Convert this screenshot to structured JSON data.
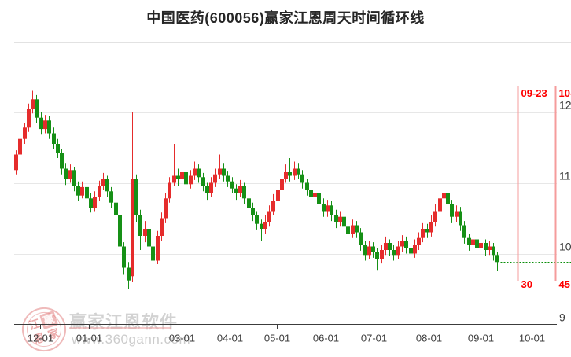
{
  "title": "中国医药(600056)赢家江恩周天时间循环线",
  "watermark": {
    "brand": "赢家江恩软件",
    "url": "www.360gann.com",
    "seal_chars": [
      "江",
      "赢",
      "恩",
      "家"
    ]
  },
  "chart_data": {
    "type": "candlestick",
    "title": "中国医药(600056)赢家江恩周天时间循环线",
    "grid": true,
    "y_axis": {
      "side": "right",
      "values": [
        12,
        11,
        10,
        9
      ],
      "tick_labels": [
        "12",
        "11",
        "10",
        "9"
      ],
      "range": [
        9,
        12.45
      ]
    },
    "x_axis": {
      "ticks": [
        {
          "label": "12-01",
          "index": 5.87
        },
        {
          "label": "01-01",
          "index": 17.61
        },
        {
          "label": "03-01",
          "index": 39.96
        },
        {
          "label": "04-01",
          "index": 51.52
        },
        {
          "label": "05-01",
          "index": 62.88
        },
        {
          "label": "06-01",
          "index": 74.62
        },
        {
          "label": "07-01",
          "index": 86.17
        },
        {
          "label": "08-01",
          "index": 99.43
        },
        {
          "label": "09-01",
          "index": 111.93
        },
        {
          "label": "10-01",
          "index": 124.24
        }
      ]
    },
    "gann_cycle_lines": [
      {
        "date_label": "09-23",
        "count_label": "30",
        "index": 120.83
      },
      {
        "date_label": "10-",
        "count_label": "45",
        "index": 129.92
      }
    ],
    "last_close_line": {
      "price": 9.88,
      "style": "dotted"
    },
    "colors": {
      "up": "#e52c2c",
      "down": "#169016",
      "cycle_line": "#f59c9c",
      "cycle_text": "#fe0000",
      "grid": "#e7e7e7",
      "axis": "#3c3c3c",
      "last_close": "#0b8f0b"
    },
    "candles_ohlc": [
      [
        11.18,
        11.46,
        11.12,
        11.4
      ],
      [
        11.4,
        11.7,
        11.34,
        11.62
      ],
      [
        11.62,
        11.84,
        11.55,
        11.78
      ],
      [
        11.78,
        12.12,
        11.72,
        12.05
      ],
      [
        12.05,
        12.3,
        11.98,
        12.18
      ],
      [
        12.18,
        12.24,
        11.85,
        11.92
      ],
      [
        11.92,
        12.0,
        11.68,
        11.76
      ],
      [
        11.76,
        11.96,
        11.7,
        11.88
      ],
      [
        11.88,
        11.94,
        11.62,
        11.7
      ],
      [
        11.7,
        11.78,
        11.48,
        11.55
      ],
      [
        11.55,
        11.62,
        11.35,
        11.42
      ],
      [
        11.42,
        11.48,
        11.12,
        11.2
      ],
      [
        11.2,
        11.28,
        10.97,
        11.05
      ],
      [
        11.05,
        11.26,
        11.0,
        11.18
      ],
      [
        11.18,
        11.22,
        10.88,
        10.95
      ],
      [
        10.95,
        11.02,
        10.75,
        10.82
      ],
      [
        10.82,
        11.02,
        10.78,
        10.94
      ],
      [
        10.94,
        11.0,
        10.7,
        10.78
      ],
      [
        10.78,
        10.85,
        10.58,
        10.65
      ],
      [
        10.65,
        10.88,
        10.6,
        10.8
      ],
      [
        10.8,
        11.03,
        10.74,
        10.95
      ],
      [
        10.95,
        11.14,
        10.9,
        11.05
      ],
      [
        11.05,
        11.1,
        10.8,
        10.88
      ],
      [
        10.88,
        10.94,
        10.64,
        10.72
      ],
      [
        10.72,
        10.78,
        10.46,
        10.55
      ],
      [
        10.55,
        10.6,
        10.02,
        10.1
      ],
      [
        10.1,
        10.16,
        9.7,
        9.8
      ],
      [
        9.8,
        9.88,
        9.5,
        9.62
      ],
      [
        9.68,
        12.0,
        9.6,
        11.05
      ],
      [
        11.05,
        11.12,
        10.45,
        10.55
      ],
      [
        10.55,
        10.62,
        10.05,
        10.25
      ],
      [
        10.25,
        10.46,
        10.16,
        10.35
      ],
      [
        10.35,
        10.4,
        9.85,
        10.1
      ],
      [
        10.1,
        10.15,
        9.62,
        9.9
      ],
      [
        9.9,
        10.32,
        9.85,
        10.25
      ],
      [
        10.25,
        10.58,
        10.18,
        10.5
      ],
      [
        10.5,
        10.85,
        10.44,
        10.78
      ],
      [
        10.78,
        11.08,
        10.72,
        11.0
      ],
      [
        11.0,
        11.55,
        10.95,
        11.1
      ],
      [
        11.1,
        11.2,
        10.96,
        11.05
      ],
      [
        11.05,
        11.24,
        11.0,
        11.15
      ],
      [
        11.15,
        11.2,
        10.9,
        10.98
      ],
      [
        10.98,
        11.18,
        10.92,
        11.1
      ],
      [
        11.1,
        11.3,
        11.04,
        11.2
      ],
      [
        11.2,
        11.26,
        11.0,
        11.08
      ],
      [
        11.08,
        11.14,
        10.88,
        10.95
      ],
      [
        10.95,
        11.0,
        10.76,
        10.85
      ],
      [
        10.85,
        11.08,
        10.8,
        11.0
      ],
      [
        11.0,
        11.2,
        10.94,
        11.12
      ],
      [
        11.12,
        11.4,
        11.06,
        11.2
      ],
      [
        11.2,
        11.28,
        11.02,
        11.1
      ],
      [
        11.1,
        11.16,
        10.94,
        11.02
      ],
      [
        11.02,
        11.08,
        10.85,
        10.92
      ],
      [
        10.92,
        10.98,
        10.76,
        10.85
      ],
      [
        10.85,
        11.04,
        10.8,
        10.95
      ],
      [
        10.95,
        11.0,
        10.7,
        10.78
      ],
      [
        10.78,
        10.84,
        10.58,
        10.65
      ],
      [
        10.65,
        10.72,
        10.46,
        10.55
      ],
      [
        10.55,
        10.6,
        10.34,
        10.42
      ],
      [
        10.42,
        10.48,
        10.18,
        10.35
      ],
      [
        10.35,
        10.54,
        10.28,
        10.45
      ],
      [
        10.45,
        10.68,
        10.38,
        10.6
      ],
      [
        10.6,
        10.84,
        10.54,
        10.75
      ],
      [
        10.75,
        10.98,
        10.68,
        10.9
      ],
      [
        10.9,
        11.14,
        10.84,
        11.05
      ],
      [
        11.05,
        11.26,
        11.0,
        11.15
      ],
      [
        11.15,
        11.35,
        11.02,
        11.1
      ],
      [
        11.1,
        11.3,
        11.04,
        11.2
      ],
      [
        11.2,
        11.28,
        11.05,
        11.12
      ],
      [
        11.12,
        11.18,
        10.92,
        11.0
      ],
      [
        11.0,
        11.06,
        10.82,
        10.9
      ],
      [
        10.9,
        10.96,
        10.72,
        10.8
      ],
      [
        10.8,
        10.94,
        10.74,
        10.85
      ],
      [
        10.85,
        10.9,
        10.62,
        10.7
      ],
      [
        10.7,
        10.78,
        10.52,
        10.6
      ],
      [
        10.6,
        10.76,
        10.52,
        10.68
      ],
      [
        10.68,
        10.74,
        10.46,
        10.55
      ],
      [
        10.55,
        10.62,
        10.36,
        10.45
      ],
      [
        10.45,
        10.6,
        10.38,
        10.52
      ],
      [
        10.52,
        10.58,
        10.3,
        10.38
      ],
      [
        10.38,
        10.44,
        10.2,
        10.28
      ],
      [
        10.28,
        10.48,
        10.22,
        10.4
      ],
      [
        10.4,
        10.46,
        10.22,
        10.3
      ],
      [
        10.3,
        10.36,
        10.04,
        10.12
      ],
      [
        10.12,
        10.18,
        9.9,
        9.98
      ],
      [
        9.98,
        10.18,
        9.92,
        10.1
      ],
      [
        10.1,
        10.16,
        9.94,
        10.02
      ],
      [
        10.02,
        10.08,
        9.77,
        9.92
      ],
      [
        9.92,
        10.12,
        9.86,
        10.05
      ],
      [
        10.05,
        10.24,
        9.98,
        10.15
      ],
      [
        10.15,
        10.2,
        9.97,
        10.05
      ],
      [
        10.05,
        10.12,
        9.9,
        9.98
      ],
      [
        9.98,
        10.18,
        9.92,
        10.1
      ],
      [
        10.1,
        10.26,
        10.02,
        10.18
      ],
      [
        10.18,
        10.24,
        10.0,
        10.08
      ],
      [
        10.08,
        10.14,
        9.92,
        10.0
      ],
      [
        10.0,
        10.2,
        9.94,
        10.12
      ],
      [
        10.12,
        10.3,
        10.05,
        10.22
      ],
      [
        10.22,
        10.44,
        10.16,
        10.35
      ],
      [
        10.35,
        10.42,
        10.22,
        10.3
      ],
      [
        10.3,
        10.54,
        10.24,
        10.45
      ],
      [
        10.45,
        10.7,
        10.38,
        10.6
      ],
      [
        10.6,
        10.95,
        10.54,
        10.78
      ],
      [
        10.78,
        11.0,
        10.7,
        10.85
      ],
      [
        10.85,
        10.92,
        10.62,
        10.7
      ],
      [
        10.7,
        10.76,
        10.44,
        10.52
      ],
      [
        10.52,
        10.68,
        10.45,
        10.6
      ],
      [
        10.6,
        10.66,
        10.32,
        10.4
      ],
      [
        10.4,
        10.46,
        10.14,
        10.22
      ],
      [
        10.22,
        10.28,
        10.04,
        10.12
      ],
      [
        10.12,
        10.28,
        10.05,
        10.2
      ],
      [
        10.2,
        10.26,
        10.0,
        10.08
      ],
      [
        10.08,
        10.22,
        10.0,
        10.15
      ],
      [
        10.15,
        10.2,
        9.97,
        10.05
      ],
      [
        10.05,
        10.18,
        9.98,
        10.1
      ],
      [
        10.1,
        10.15,
        9.9,
        9.98
      ],
      [
        9.98,
        10.02,
        9.75,
        9.88
      ]
    ]
  }
}
